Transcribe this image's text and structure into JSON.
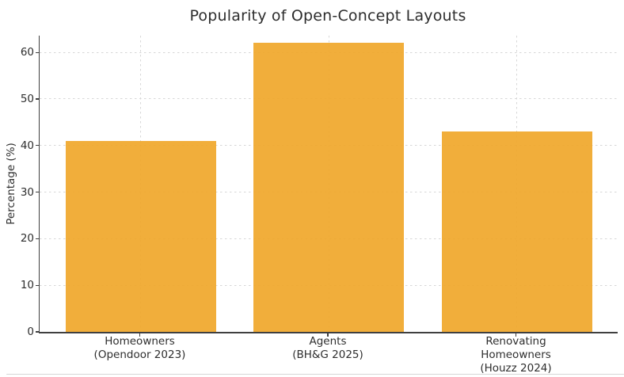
{
  "chart_data": {
    "type": "bar",
    "title": "Popularity of Open-Concept Layouts",
    "xlabel": "",
    "ylabel": "Percentage (%)",
    "categories": [
      "Homeowners\n(Opendoor 2023)",
      "Agents\n(BH&G 2025)",
      "Renovating\nHomeowners\n(Houzz 2024)"
    ],
    "values": [
      41,
      62,
      43
    ],
    "yticks": [
      0,
      10,
      20,
      30,
      40,
      50,
      60
    ],
    "ylim": [
      0,
      63.6
    ],
    "bar_color": "#F0A72A",
    "bar_opacity": 0.92,
    "grid_color": "#d7d7d7",
    "grid_style": "dashed",
    "legend_position": "none",
    "background_color": "#ffffff"
  }
}
